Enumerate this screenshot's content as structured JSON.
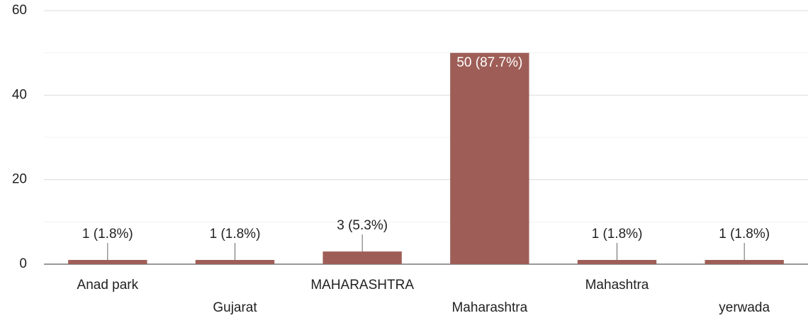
{
  "chart_data": {
    "type": "bar",
    "categories": [
      "Anad park",
      "Gujarat",
      "MAHARASHTRA",
      "Maharashtra",
      "Mahashtra",
      "yerwada"
    ],
    "values": [
      1,
      1,
      3,
      50,
      1,
      1
    ],
    "value_labels": [
      "1 (1.8%)",
      "1 (1.8%)",
      "3 (5.3%)",
      "50 (87.7%)",
      "1 (1.8%)",
      "1 (1.8%)"
    ],
    "color": "#9e5e57",
    "ylim": [
      0,
      60
    ],
    "yticks": [
      0,
      20,
      40,
      60
    ],
    "minor_gridlines": [
      10,
      30,
      50
    ],
    "grid": true
  }
}
